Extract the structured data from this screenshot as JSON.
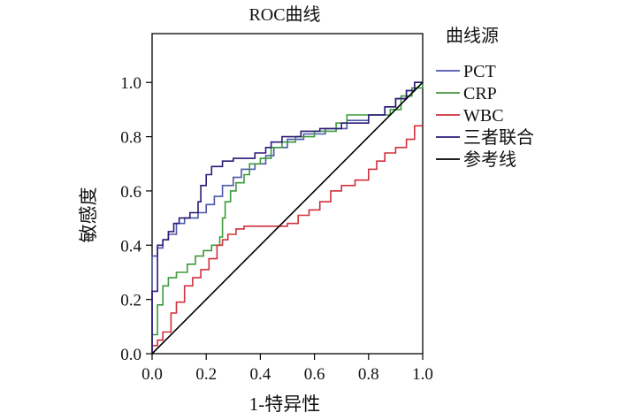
{
  "chart_data": {
    "type": "line",
    "title": "ROC曲线",
    "xlabel": "1-特异性",
    "ylabel": "敏感度",
    "xlim": [
      0,
      1
    ],
    "ylim": [
      0,
      1.18
    ],
    "xticks": [
      0,
      0.2,
      0.4,
      0.6,
      0.8,
      1.0
    ],
    "xtick_labels": [
      "0.0",
      "0.2",
      "0.4",
      "0.6",
      "0.8",
      "1.0"
    ],
    "yticks": [
      0,
      0.2,
      0.4,
      0.6,
      0.8,
      1.0
    ],
    "ytick_labels": [
      "0.0",
      "0.2",
      "0.4",
      "0.6",
      "0.8",
      "1.0"
    ],
    "grid": false,
    "legend_title": "曲线源",
    "legend_position": "right",
    "series": [
      {
        "name": "PCT",
        "color": "#4b57a8",
        "points": [
          [
            0,
            0
          ],
          [
            0,
            0.36
          ],
          [
            0.02,
            0.36
          ],
          [
            0.02,
            0.39
          ],
          [
            0.04,
            0.39
          ],
          [
            0.04,
            0.42
          ],
          [
            0.06,
            0.42
          ],
          [
            0.06,
            0.44
          ],
          [
            0.09,
            0.44
          ],
          [
            0.09,
            0.48
          ],
          [
            0.12,
            0.48
          ],
          [
            0.12,
            0.5
          ],
          [
            0.17,
            0.5
          ],
          [
            0.17,
            0.52
          ],
          [
            0.2,
            0.52
          ],
          [
            0.2,
            0.55
          ],
          [
            0.23,
            0.55
          ],
          [
            0.23,
            0.58
          ],
          [
            0.26,
            0.58
          ],
          [
            0.26,
            0.62
          ],
          [
            0.3,
            0.62
          ],
          [
            0.3,
            0.65
          ],
          [
            0.33,
            0.65
          ],
          [
            0.33,
            0.68
          ],
          [
            0.38,
            0.68
          ],
          [
            0.38,
            0.7
          ],
          [
            0.42,
            0.7
          ],
          [
            0.42,
            0.73
          ],
          [
            0.45,
            0.73
          ],
          [
            0.45,
            0.76
          ],
          [
            0.5,
            0.76
          ],
          [
            0.5,
            0.79
          ],
          [
            0.56,
            0.79
          ],
          [
            0.56,
            0.81
          ],
          [
            0.64,
            0.81
          ],
          [
            0.64,
            0.83
          ],
          [
            0.72,
            0.83
          ],
          [
            0.72,
            0.86
          ],
          [
            0.8,
            0.86
          ],
          [
            0.8,
            0.88
          ],
          [
            0.86,
            0.88
          ],
          [
            0.86,
            0.91
          ],
          [
            0.9,
            0.91
          ],
          [
            0.9,
            0.94
          ],
          [
            0.94,
            0.94
          ],
          [
            0.94,
            0.97
          ],
          [
            0.97,
            0.97
          ],
          [
            0.97,
            1.0
          ],
          [
            1.0,
            1.0
          ]
        ]
      },
      {
        "name": "CRP",
        "color": "#3c9a3c",
        "points": [
          [
            0,
            0
          ],
          [
            0,
            0.07
          ],
          [
            0.02,
            0.07
          ],
          [
            0.02,
            0.18
          ],
          [
            0.04,
            0.18
          ],
          [
            0.04,
            0.25
          ],
          [
            0.06,
            0.25
          ],
          [
            0.06,
            0.28
          ],
          [
            0.09,
            0.28
          ],
          [
            0.09,
            0.3
          ],
          [
            0.13,
            0.3
          ],
          [
            0.13,
            0.33
          ],
          [
            0.16,
            0.33
          ],
          [
            0.16,
            0.36
          ],
          [
            0.19,
            0.36
          ],
          [
            0.19,
            0.38
          ],
          [
            0.22,
            0.38
          ],
          [
            0.22,
            0.4
          ],
          [
            0.25,
            0.4
          ],
          [
            0.25,
            0.43
          ],
          [
            0.26,
            0.43
          ],
          [
            0.26,
            0.5
          ],
          [
            0.27,
            0.5
          ],
          [
            0.27,
            0.56
          ],
          [
            0.29,
            0.56
          ],
          [
            0.29,
            0.6
          ],
          [
            0.31,
            0.6
          ],
          [
            0.31,
            0.63
          ],
          [
            0.34,
            0.63
          ],
          [
            0.34,
            0.66
          ],
          [
            0.36,
            0.66
          ],
          [
            0.36,
            0.7
          ],
          [
            0.4,
            0.7
          ],
          [
            0.4,
            0.72
          ],
          [
            0.44,
            0.72
          ],
          [
            0.44,
            0.76
          ],
          [
            0.48,
            0.76
          ],
          [
            0.48,
            0.78
          ],
          [
            0.53,
            0.78
          ],
          [
            0.53,
            0.8
          ],
          [
            0.6,
            0.8
          ],
          [
            0.6,
            0.82
          ],
          [
            0.68,
            0.82
          ],
          [
            0.68,
            0.85
          ],
          [
            0.72,
            0.85
          ],
          [
            0.72,
            0.88
          ],
          [
            0.88,
            0.88
          ],
          [
            0.88,
            0.9
          ],
          [
            0.92,
            0.9
          ],
          [
            0.92,
            0.95
          ],
          [
            0.96,
            0.95
          ],
          [
            0.96,
            0.98
          ],
          [
            1.0,
            0.98
          ],
          [
            1.0,
            1.0
          ]
        ]
      },
      {
        "name": "WBC",
        "color": "#d1303c",
        "points": [
          [
            0,
            0
          ],
          [
            0,
            0.03
          ],
          [
            0.02,
            0.03
          ],
          [
            0.02,
            0.05
          ],
          [
            0.04,
            0.05
          ],
          [
            0.04,
            0.08
          ],
          [
            0.07,
            0.08
          ],
          [
            0.07,
            0.15
          ],
          [
            0.09,
            0.15
          ],
          [
            0.09,
            0.19
          ],
          [
            0.12,
            0.19
          ],
          [
            0.12,
            0.25
          ],
          [
            0.15,
            0.25
          ],
          [
            0.15,
            0.28
          ],
          [
            0.18,
            0.28
          ],
          [
            0.18,
            0.31
          ],
          [
            0.21,
            0.31
          ],
          [
            0.21,
            0.35
          ],
          [
            0.24,
            0.35
          ],
          [
            0.24,
            0.4
          ],
          [
            0.26,
            0.4
          ],
          [
            0.26,
            0.42
          ],
          [
            0.28,
            0.42
          ],
          [
            0.28,
            0.44
          ],
          [
            0.31,
            0.44
          ],
          [
            0.31,
            0.46
          ],
          [
            0.34,
            0.46
          ],
          [
            0.34,
            0.47
          ],
          [
            0.5,
            0.47
          ],
          [
            0.5,
            0.48
          ],
          [
            0.54,
            0.48
          ],
          [
            0.54,
            0.51
          ],
          [
            0.58,
            0.51
          ],
          [
            0.58,
            0.53
          ],
          [
            0.62,
            0.53
          ],
          [
            0.62,
            0.56
          ],
          [
            0.66,
            0.56
          ],
          [
            0.66,
            0.6
          ],
          [
            0.7,
            0.6
          ],
          [
            0.7,
            0.62
          ],
          [
            0.75,
            0.62
          ],
          [
            0.75,
            0.64
          ],
          [
            0.8,
            0.64
          ],
          [
            0.8,
            0.68
          ],
          [
            0.83,
            0.68
          ],
          [
            0.83,
            0.71
          ],
          [
            0.86,
            0.71
          ],
          [
            0.86,
            0.74
          ],
          [
            0.9,
            0.74
          ],
          [
            0.9,
            0.76
          ],
          [
            0.94,
            0.76
          ],
          [
            0.94,
            0.79
          ],
          [
            0.97,
            0.79
          ],
          [
            0.97,
            0.84
          ],
          [
            1.0,
            0.84
          ]
        ]
      },
      {
        "name": "三者联合",
        "color": "#2b1a78",
        "points": [
          [
            0,
            0
          ],
          [
            0,
            0.23
          ],
          [
            0.02,
            0.23
          ],
          [
            0.02,
            0.4
          ],
          [
            0.04,
            0.4
          ],
          [
            0.04,
            0.42
          ],
          [
            0.06,
            0.42
          ],
          [
            0.06,
            0.45
          ],
          [
            0.08,
            0.45
          ],
          [
            0.08,
            0.48
          ],
          [
            0.1,
            0.48
          ],
          [
            0.1,
            0.5
          ],
          [
            0.14,
            0.5
          ],
          [
            0.14,
            0.52
          ],
          [
            0.17,
            0.52
          ],
          [
            0.17,
            0.56
          ],
          [
            0.18,
            0.56
          ],
          [
            0.18,
            0.62
          ],
          [
            0.2,
            0.62
          ],
          [
            0.2,
            0.66
          ],
          [
            0.22,
            0.66
          ],
          [
            0.22,
            0.69
          ],
          [
            0.26,
            0.69
          ],
          [
            0.26,
            0.71
          ],
          [
            0.3,
            0.71
          ],
          [
            0.3,
            0.72
          ],
          [
            0.38,
            0.72
          ],
          [
            0.38,
            0.74
          ],
          [
            0.42,
            0.74
          ],
          [
            0.42,
            0.76
          ],
          [
            0.44,
            0.76
          ],
          [
            0.44,
            0.78
          ],
          [
            0.48,
            0.78
          ],
          [
            0.48,
            0.8
          ],
          [
            0.55,
            0.8
          ],
          [
            0.55,
            0.82
          ],
          [
            0.62,
            0.82
          ],
          [
            0.62,
            0.83
          ],
          [
            0.7,
            0.83
          ],
          [
            0.7,
            0.85
          ],
          [
            0.8,
            0.85
          ],
          [
            0.8,
            0.88
          ],
          [
            0.86,
            0.88
          ],
          [
            0.86,
            0.91
          ],
          [
            0.9,
            0.91
          ],
          [
            0.9,
            0.94
          ],
          [
            0.94,
            0.94
          ],
          [
            0.94,
            0.97
          ],
          [
            0.97,
            0.97
          ],
          [
            0.97,
            1.0
          ],
          [
            1.0,
            1.0
          ]
        ]
      },
      {
        "name": "参考线",
        "color": "#000000",
        "points": [
          [
            0,
            0
          ],
          [
            1,
            1
          ]
        ]
      }
    ]
  }
}
